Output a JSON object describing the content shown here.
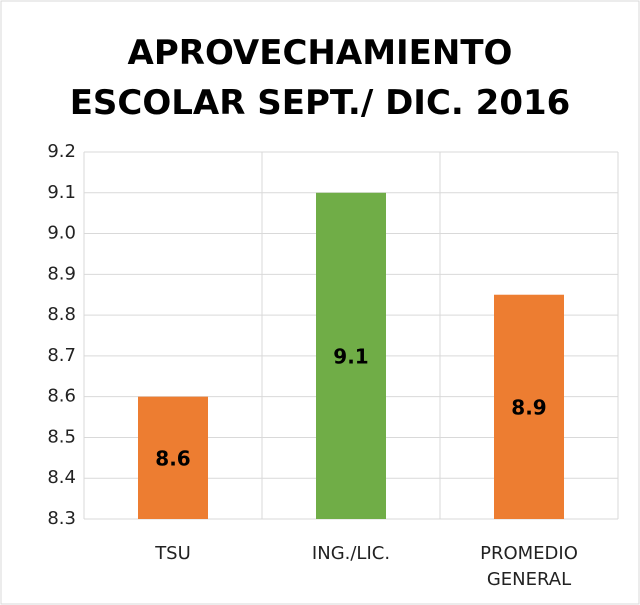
{
  "chart_data": {
    "type": "bar",
    "title": "APROVECHAMIENTO ESCOLAR SEPT./ DIC. 2016",
    "categories": [
      "TSU",
      "ING./LIC.",
      "PROMEDIO GENERAL"
    ],
    "values": [
      8.6,
      9.1,
      8.85
    ],
    "value_labels": [
      "8.6",
      "9.1",
      "8.9"
    ],
    "colors": [
      "#ed7d31",
      "#70ad47",
      "#ed7d31"
    ],
    "ylim": [
      8.3,
      9.2
    ],
    "yticks": [
      8.3,
      8.4,
      8.5,
      8.6,
      8.7,
      8.8,
      8.9,
      {
        "value": 9,
        "label": "9.0"
      },
      9.1,
      9.2
    ],
    "grid": true
  }
}
